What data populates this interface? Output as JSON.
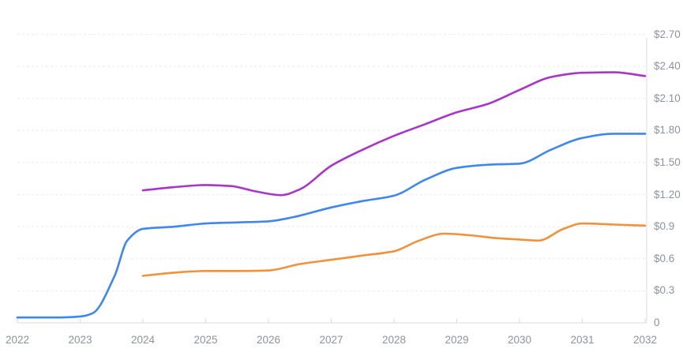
{
  "chart_data": {
    "type": "line",
    "title": "",
    "xlabel": "",
    "ylabel": "",
    "legend": "none",
    "grid": "horizontal-dashed",
    "x_range": [
      2022,
      2032
    ],
    "y_range": [
      0,
      2.7
    ],
    "x_ticks": [
      "2022",
      "2023",
      "2024",
      "2025",
      "2026",
      "2027",
      "2028",
      "2029",
      "2030",
      "2031",
      "2032"
    ],
    "y_ticks": [
      {
        "value": 2.7,
        "label": "$2.70"
      },
      {
        "value": 2.4,
        "label": "$2.40"
      },
      {
        "value": 2.1,
        "label": "$2.10"
      },
      {
        "value": 1.8,
        "label": "$1.80"
      },
      {
        "value": 1.5,
        "label": "$1.50"
      },
      {
        "value": 1.2,
        "label": "$1.20"
      },
      {
        "value": 0.9,
        "label": "$0.9"
      },
      {
        "value": 0.6,
        "label": "$0.6"
      },
      {
        "value": 0.3,
        "label": "$0.3"
      },
      {
        "value": 0.0,
        "label": "0"
      }
    ],
    "series": [
      {
        "name": "purple-series",
        "color": "#a934c9",
        "points": [
          [
            2024,
            1.24
          ],
          [
            2024.5,
            1.27
          ],
          [
            2025,
            1.29
          ],
          [
            2025.4,
            1.28
          ],
          [
            2025.8,
            1.23
          ],
          [
            2026.2,
            1.195
          ],
          [
            2026.5,
            1.25
          ],
          [
            2027,
            1.47
          ],
          [
            2027.5,
            1.62
          ],
          [
            2028,
            1.75
          ],
          [
            2028.5,
            1.86
          ],
          [
            2029,
            1.97
          ],
          [
            2029.5,
            2.05
          ],
          [
            2030,
            2.18
          ],
          [
            2030.5,
            2.3
          ],
          [
            2031,
            2.34
          ],
          [
            2031.5,
            2.345
          ],
          [
            2032,
            2.31
          ]
        ]
      },
      {
        "name": "blue-series",
        "color": "#3d87ee",
        "points": [
          [
            2022,
            0.05
          ],
          [
            2022.6,
            0.05
          ],
          [
            2023,
            0.06
          ],
          [
            2023.2,
            0.09
          ],
          [
            2023.55,
            0.44
          ],
          [
            2023.75,
            0.77
          ],
          [
            2024,
            0.88
          ],
          [
            2024.5,
            0.9
          ],
          [
            2025,
            0.93
          ],
          [
            2025.5,
            0.94
          ],
          [
            2026,
            0.95
          ],
          [
            2026.4,
            0.99
          ],
          [
            2027,
            1.08
          ],
          [
            2027.5,
            1.14
          ],
          [
            2028,
            1.19
          ],
          [
            2028.5,
            1.34
          ],
          [
            2029,
            1.45
          ],
          [
            2029.5,
            1.48
          ],
          [
            2030,
            1.49
          ],
          [
            2030.5,
            1.62
          ],
          [
            2031,
            1.73
          ],
          [
            2031.5,
            1.77
          ],
          [
            2032,
            1.77
          ]
        ]
      },
      {
        "name": "orange-series",
        "color": "#f0913c",
        "points": [
          [
            2024,
            0.44
          ],
          [
            2024.5,
            0.47
          ],
          [
            2025,
            0.485
          ],
          [
            2025.5,
            0.485
          ],
          [
            2026,
            0.49
          ],
          [
            2026.5,
            0.55
          ],
          [
            2027,
            0.59
          ],
          [
            2027.5,
            0.63
          ],
          [
            2028,
            0.67
          ],
          [
            2028.4,
            0.77
          ],
          [
            2028.8,
            0.835
          ],
          [
            2029.2,
            0.82
          ],
          [
            2029.6,
            0.795
          ],
          [
            2030,
            0.78
          ],
          [
            2030.3,
            0.77
          ],
          [
            2030.7,
            0.88
          ],
          [
            2031,
            0.93
          ],
          [
            2031.5,
            0.92
          ],
          [
            2032,
            0.91
          ]
        ]
      }
    ],
    "style": {
      "gridline_color": "#ebebf0",
      "axis_line_color": "#e2e2e8",
      "tick_color": "#d9d9e0",
      "label_color": "#8d929e",
      "line_width": 2.6
    }
  }
}
